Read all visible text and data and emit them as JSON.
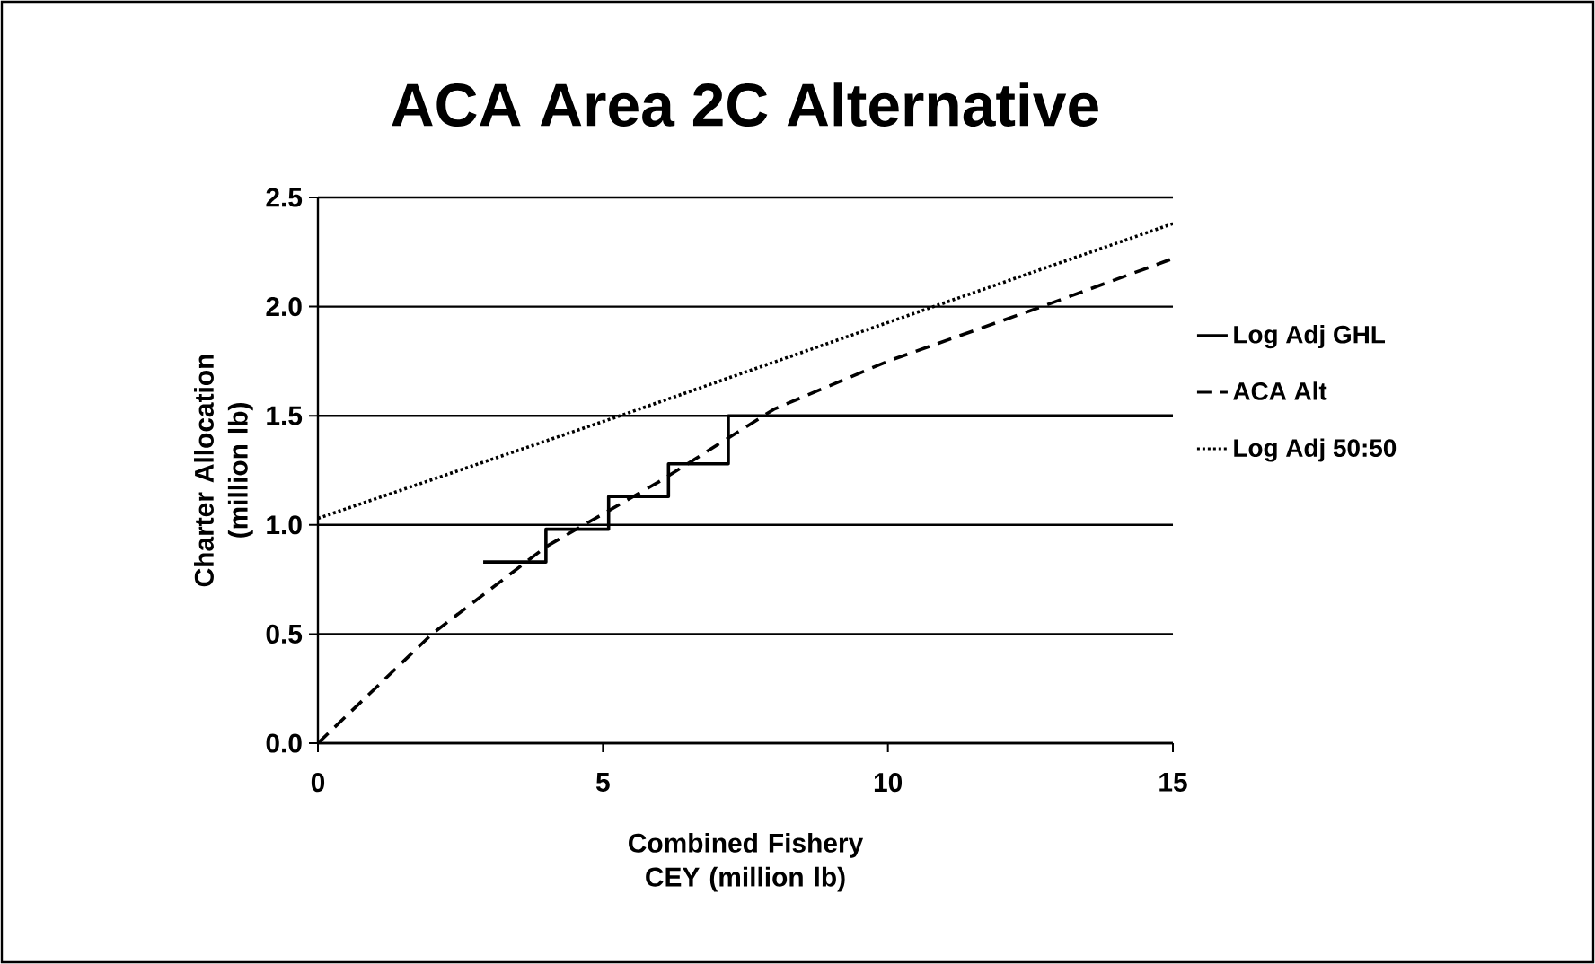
{
  "chart_data": {
    "type": "line",
    "title": "ACA Area 2C Alternative",
    "xlabel": "Combined Fishery CEY (million lb)",
    "ylabel": "Charter Allocation (million lb)",
    "xlim": [
      0,
      15
    ],
    "xticks": [
      0,
      5,
      10,
      15
    ],
    "ylim": [
      0,
      2.5
    ],
    "yticks": [
      {
        "value": 0,
        "label": "0.0"
      },
      0.5,
      {
        "value": 1,
        "label": "1.0"
      },
      1.5,
      {
        "value": 2,
        "label": "2.0"
      },
      2.5
    ],
    "grid": "y",
    "legend": "right",
    "series": [
      {
        "name": "Log Adj GHL",
        "type": "step",
        "color": "#000000",
        "line_style": "solid",
        "x": [
          2.9,
          4.0,
          5.1,
          6.15,
          7.2,
          15
        ],
        "values": [
          0.83,
          0.98,
          1.13,
          1.28,
          1.5,
          1.5
        ]
      },
      {
        "name": "ACA Alt",
        "color": "#000000",
        "line_style": "dashed",
        "x": [
          0,
          2,
          4,
          6,
          8,
          10,
          12.7,
          15
        ],
        "values": [
          0,
          0.5,
          0.9,
          1.2,
          1.53,
          1.75,
          2.0,
          2.22
        ]
      },
      {
        "name": "Log Adj 50:50",
        "color": "#000000",
        "line_style": "dotted",
        "x": [
          0,
          5.3,
          10.8,
          15
        ],
        "values": [
          1.03,
          1.5,
          2.0,
          2.38
        ]
      }
    ]
  }
}
